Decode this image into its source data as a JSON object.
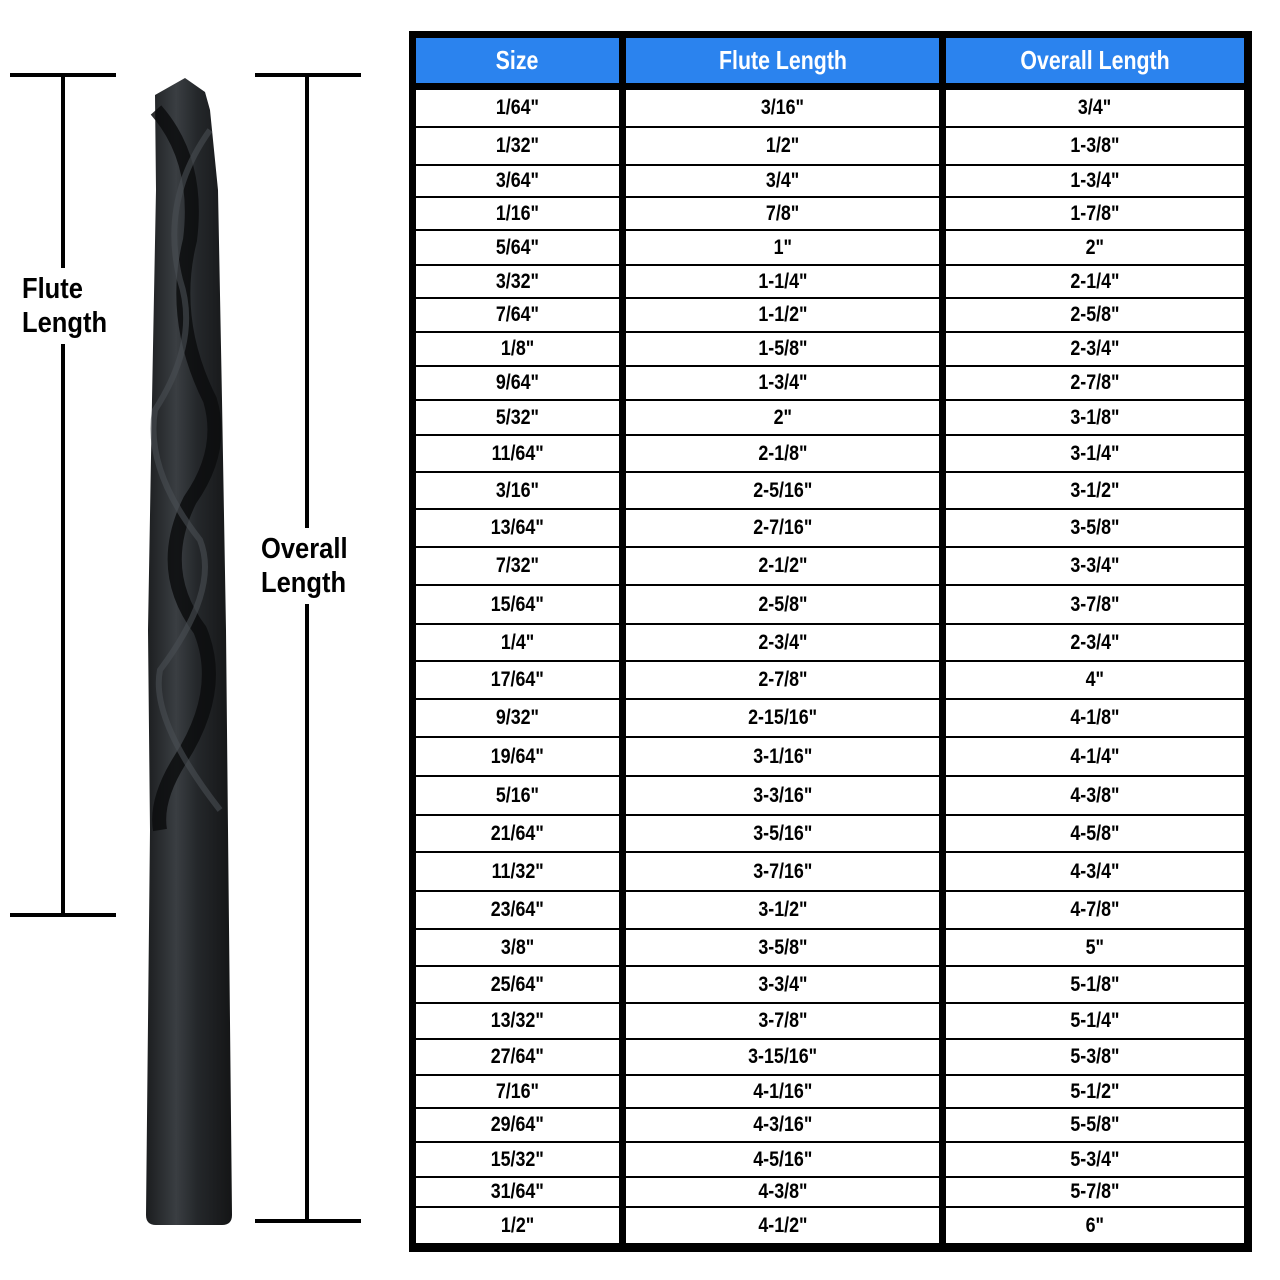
{
  "labels": {
    "flute_length_line1": "Flute",
    "flute_length_line2": "Length",
    "overall_length_line1": "Overall",
    "overall_length_line2": "Length"
  },
  "colors": {
    "header_bg": "#2b83ee",
    "header_text": "#ffffff",
    "border": "#000000",
    "drill": "#2a2d30"
  },
  "table": {
    "headers": [
      "Size",
      "Flute Length",
      "Overall Length"
    ],
    "rows": [
      [
        "1/64\"",
        "3/16\"",
        "3/4\""
      ],
      [
        "1/32\"",
        "1/2\"",
        "1-3/8\""
      ],
      [
        "3/64\"",
        "3/4\"",
        "1-3/4\""
      ],
      [
        "1/16\"",
        "7/8\"",
        "1-7/8\""
      ],
      [
        "5/64\"",
        "1\"",
        "2\""
      ],
      [
        "3/32\"",
        "1-1/4\"",
        "2-1/4\""
      ],
      [
        "7/64\"",
        "1-1/2\"",
        "2-5/8\""
      ],
      [
        "1/8\"",
        "1-5/8\"",
        "2-3/4\""
      ],
      [
        "9/64\"",
        "1-3/4\"",
        "2-7/8\""
      ],
      [
        "5/32\"",
        "2\"",
        "3-1/8\""
      ],
      [
        "11/64\"",
        "2-1/8\"",
        "3-1/4\""
      ],
      [
        "3/16\"",
        "2-5/16\"",
        "3-1/2\""
      ],
      [
        "13/64\"",
        "2-7/16\"",
        "3-5/8\""
      ],
      [
        "7/32\"",
        "2-1/2\"",
        "3-3/4\""
      ],
      [
        "15/64\"",
        "2-5/8\"",
        "3-7/8\""
      ],
      [
        "1/4\"",
        "2-3/4\"",
        "2-3/4\""
      ],
      [
        "17/64\"",
        "2-7/8\"",
        "4\""
      ],
      [
        "9/32\"",
        "2-15/16\"",
        "4-1/8\""
      ],
      [
        "19/64\"",
        "3-1/16\"",
        "4-1/4\""
      ],
      [
        "5/16\"",
        "3-3/16\"",
        "4-3/8\""
      ],
      [
        "21/64\"",
        "3-5/16\"",
        "4-5/8\""
      ],
      [
        "11/32\"",
        "3-7/16\"",
        "4-3/4\""
      ],
      [
        "23/64\"",
        "3-1/2\"",
        "4-7/8\""
      ],
      [
        "3/8\"",
        "3-5/8\"",
        "5\""
      ],
      [
        "25/64\"",
        "3-3/4\"",
        "5-1/8\""
      ],
      [
        "13/32\"",
        "3-7/8\"",
        "5-1/4\""
      ],
      [
        "27/64\"",
        "3-15/16\"",
        "5-3/8\""
      ],
      [
        "7/16\"",
        "4-1/16\"",
        "5-1/2\""
      ],
      [
        "29/64\"",
        "4-3/16\"",
        "5-5/8\""
      ],
      [
        "15/32\"",
        "4-5/16\"",
        "5-3/4\""
      ],
      [
        "31/64\"",
        "4-3/8\"",
        "5-7/8\""
      ],
      [
        "1/2\"",
        "4-1/2\"",
        "6\""
      ]
    ]
  }
}
